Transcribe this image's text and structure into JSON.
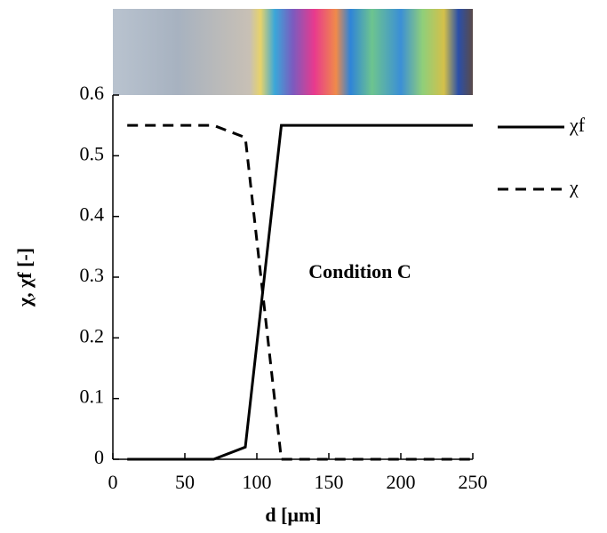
{
  "chart_data": {
    "type": "line",
    "x_label": "d [μm]",
    "y_label": "χ, χf [-]",
    "annotation": "Condition C",
    "x": [
      10,
      70,
      92,
      117,
      250
    ],
    "series": [
      {
        "name": "χf",
        "color": "#000000",
        "dash": "solid",
        "values": [
          0,
          0,
          0.02,
          0.55,
          0.55
        ]
      },
      {
        "name": "χ",
        "color": "#000000",
        "dash": "dashed",
        "values": [
          0.55,
          0.55,
          0.53,
          0,
          0
        ]
      }
    ],
    "xlim": [
      0,
      250
    ],
    "xticks": [
      0,
      50,
      100,
      150,
      200,
      250
    ],
    "ylim": [
      0,
      0.6
    ],
    "yticks": [
      0,
      0.1,
      0.2,
      0.3,
      0.4,
      0.5,
      0.6
    ],
    "legend": "right"
  }
}
